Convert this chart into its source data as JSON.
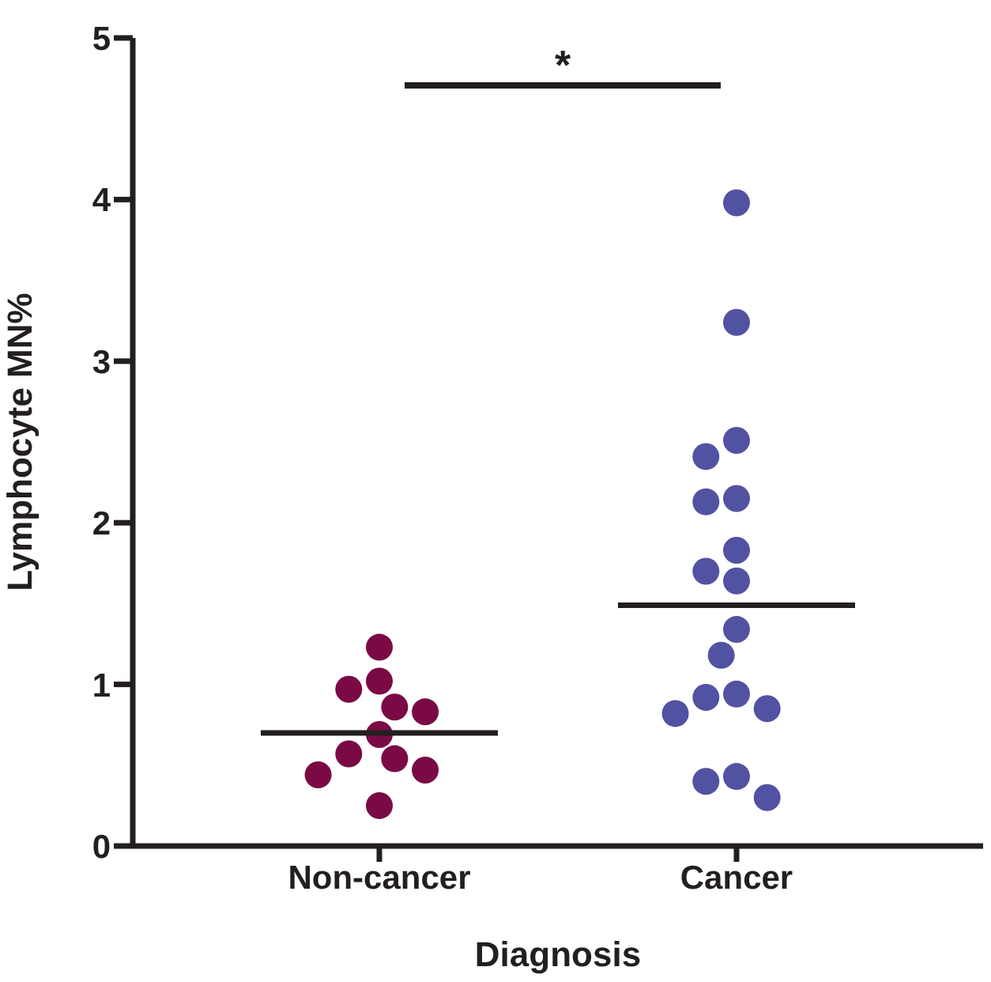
{
  "chart_data": {
    "type": "scatter",
    "xlabel": "Diagnosis",
    "ylabel": "Lymphocyte MN%",
    "categories": [
      "Non-cancer",
      "Cancer"
    ],
    "ylim": [
      0,
      5
    ],
    "yticks": [
      0,
      1,
      2,
      3,
      4,
      5
    ],
    "grid": false,
    "marker": "circle",
    "annotations": [
      "*"
    ],
    "series": [
      {
        "color": "#7a0a45",
        "x": [
          "Non-cancer",
          "Non-cancer",
          "Non-cancer",
          "Non-cancer",
          "Non-cancer",
          "Non-cancer",
          "Non-cancer",
          "Non-cancer",
          "Non-cancer",
          "Non-cancer",
          "Non-cancer"
        ],
        "values": [
          1.23,
          1.02,
          0.97,
          0.86,
          0.83,
          0.69,
          0.57,
          0.54,
          0.47,
          0.44,
          0.25
        ]
      },
      {
        "color": "#5252a2",
        "x": [
          "Cancer",
          "Cancer",
          "Cancer",
          "Cancer",
          "Cancer",
          "Cancer",
          "Cancer",
          "Cancer",
          "Cancer",
          "Cancer",
          "Cancer",
          "Cancer",
          "Cancer",
          "Cancer",
          "Cancer",
          "Cancer",
          "Cancer",
          "Cancer"
        ],
        "values": [
          3.98,
          3.24,
          2.51,
          2.41,
          2.15,
          2.13,
          1.83,
          1.7,
          1.64,
          1.34,
          1.18,
          0.94,
          0.92,
          0.85,
          0.82,
          0.43,
          0.4,
          0.3
        ]
      },
      {
        "type": "box",
        "color": "#231f20",
        "boxes": [
          {
            "low": 0.7,
            "q1": 0.7,
            "median": 0.7,
            "q3": 0.7,
            "high": 0.7
          },
          {
            "low": 1.49,
            "q1": 1.49,
            "median": 1.49,
            "q3": 1.49,
            "high": 1.49
          }
        ]
      }
    ]
  }
}
